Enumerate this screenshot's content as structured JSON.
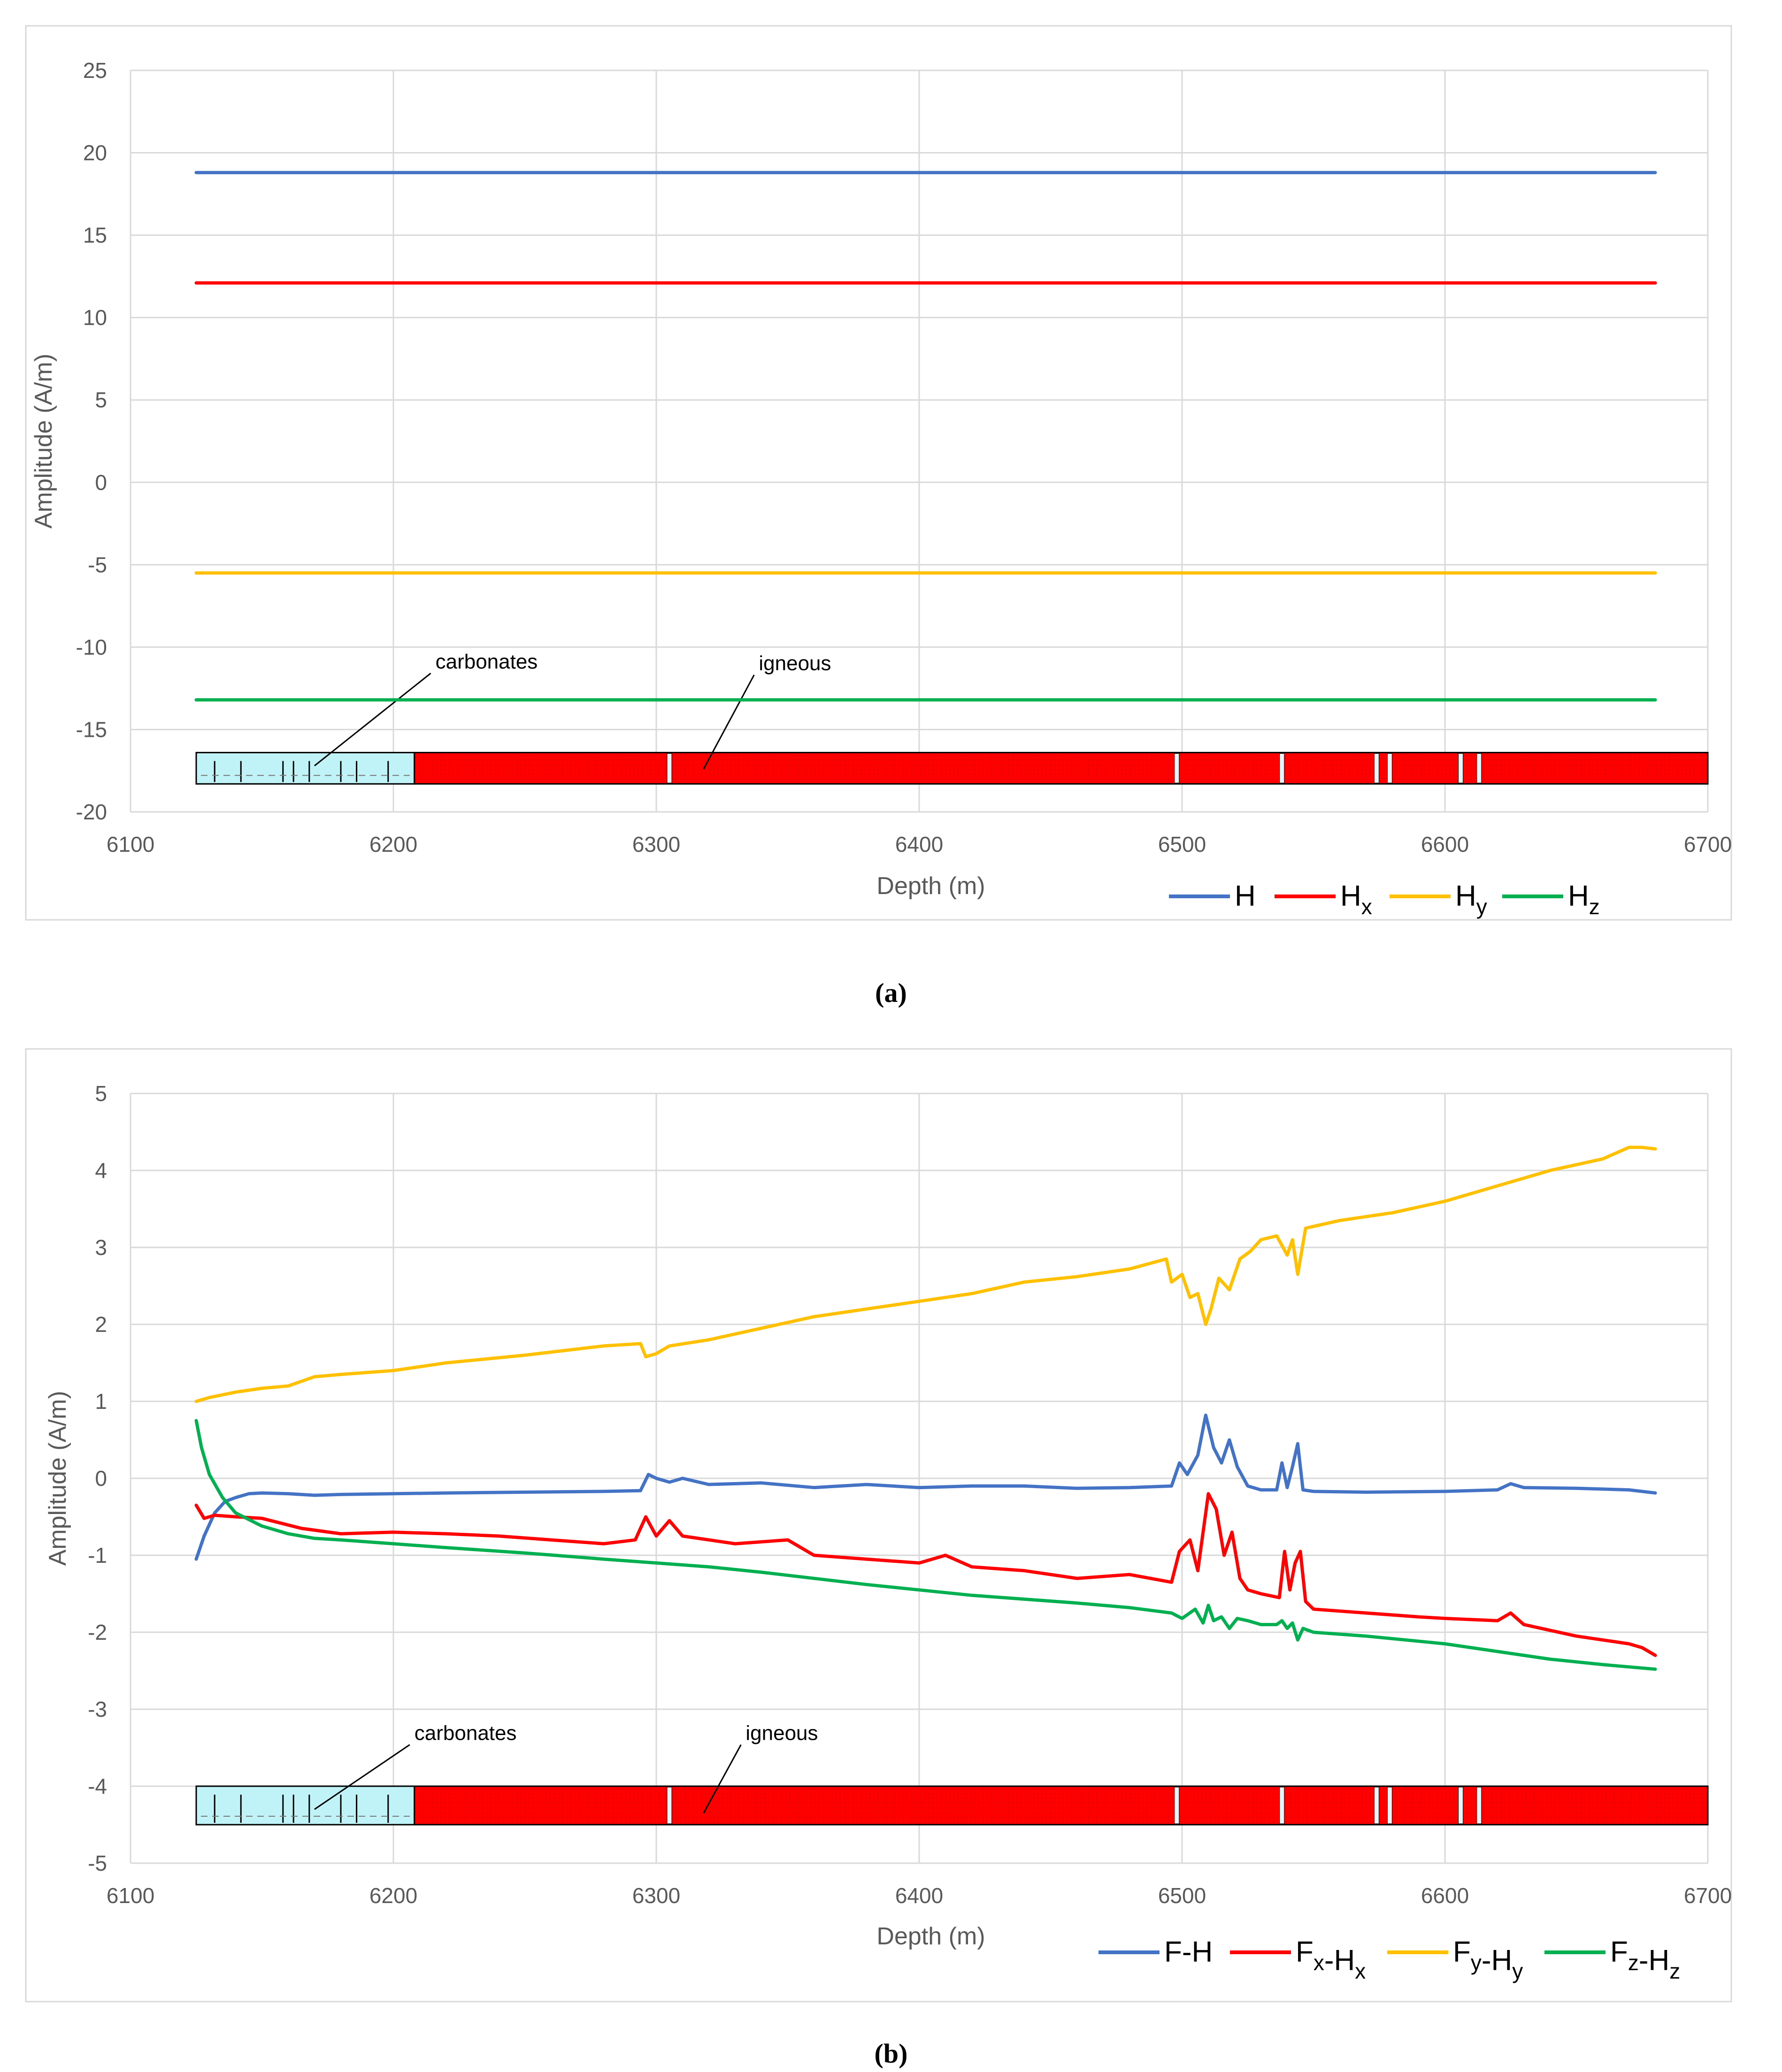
{
  "chart_data": [
    {
      "type": "line",
      "caption": "(a)",
      "xlabel": "Depth (m)",
      "ylabel": "Amplitude (A/m)",
      "xlim": [
        6100,
        6700
      ],
      "ylim": [
        -20,
        25
      ],
      "xticks": [
        "6100",
        "6200",
        "6300",
        "6400",
        "6500",
        "6600",
        "6700"
      ],
      "yticks": [
        "25",
        "20",
        "15",
        "10",
        "5",
        "0",
        "-5",
        "-10",
        "-15",
        "-20"
      ],
      "x_range": [
        6125,
        6680
      ],
      "series": [
        {
          "name": "H",
          "main": "H",
          "sub": "",
          "color": "#4472C4",
          "x": [
            6125,
            6680
          ],
          "values": [
            18.8,
            18.8
          ]
        },
        {
          "name": "Hx",
          "main": "H",
          "sub": "x",
          "color": "#FF0000",
          "x": [
            6125,
            6680
          ],
          "values": [
            12.1,
            12.1
          ]
        },
        {
          "name": "Hy",
          "main": "H",
          "sub": "y",
          "color": "#FFC000",
          "x": [
            6125,
            6680
          ],
          "values": [
            -5.5,
            -5.5
          ]
        },
        {
          "name": "Hz",
          "main": "H",
          "sub": "z",
          "color": "#00B050",
          "x": [
            6125,
            6680
          ],
          "values": [
            -13.2,
            -13.2
          ]
        }
      ],
      "lithology": {
        "y_range": [
          -18.3,
          -16.4
        ],
        "units": [
          {
            "name": "carbonates",
            "from": 6125,
            "to": 6208,
            "color": "#BFF3F7"
          },
          {
            "name": "igneous",
            "from": 6208,
            "to": 6700,
            "color": "#FF0000"
          }
        ],
        "white_breaks": [
          6305,
          6498,
          6538,
          6574,
          6579,
          6606,
          6613
        ],
        "annotations": [
          {
            "label": "carbonates",
            "text_x": 6216,
            "text_y": -11.3,
            "arrow_to": [
              6170,
              -17.2
            ]
          },
          {
            "label": "igneous",
            "text_x": 6339,
            "text_y": -11.4,
            "arrow_to": [
              6318,
              -17.4
            ]
          }
        ]
      }
    },
    {
      "type": "line",
      "caption": "(b)",
      "xlabel": "Depth (m)",
      "ylabel": "Amplitude (A/m)",
      "xlim": [
        6100,
        6700
      ],
      "ylim": [
        -5,
        5
      ],
      "xticks": [
        "6100",
        "6200",
        "6300",
        "6400",
        "6500",
        "6600",
        "6700"
      ],
      "yticks": [
        "5",
        "4",
        "3",
        "2",
        "1",
        "0",
        "-1",
        "-2",
        "-3",
        "-4",
        "-5"
      ],
      "series": [
        {
          "name": "F-H",
          "parts": [
            {
              "t": "F-H"
            }
          ],
          "color": "#4472C4",
          "x": [
            6125,
            6128,
            6132,
            6136,
            6140,
            6145,
            6150,
            6160,
            6170,
            6180,
            6200,
            6220,
            6250,
            6280,
            6294,
            6297,
            6300,
            6305,
            6310,
            6320,
            6340,
            6360,
            6380,
            6400,
            6420,
            6440,
            6460,
            6480,
            6496,
            6499,
            6502,
            6506,
            6509,
            6512,
            6515,
            6518,
            6521,
            6525,
            6530,
            6536,
            6538,
            6540,
            6542,
            6544,
            6546,
            6550,
            6570,
            6600,
            6620,
            6625,
            6630,
            6650,
            6670,
            6680
          ],
          "values": [
            -1.05,
            -0.75,
            -0.45,
            -0.3,
            -0.25,
            -0.2,
            -0.19,
            -0.2,
            -0.22,
            -0.21,
            -0.2,
            -0.19,
            -0.18,
            -0.17,
            -0.16,
            0.05,
            0.0,
            -0.05,
            0.0,
            -0.08,
            -0.06,
            -0.12,
            -0.08,
            -0.12,
            -0.1,
            -0.1,
            -0.13,
            -0.12,
            -0.1,
            0.2,
            0.05,
            0.3,
            0.82,
            0.4,
            0.2,
            0.5,
            0.15,
            -0.1,
            -0.15,
            -0.15,
            0.2,
            -0.12,
            0.15,
            0.45,
            -0.15,
            -0.17,
            -0.18,
            -0.17,
            -0.15,
            -0.07,
            -0.12,
            -0.13,
            -0.15,
            -0.19
          ]
        },
        {
          "name": "Fx-Hx",
          "parts": [
            {
              "t": "F"
            },
            {
              "t": "x",
              "sub": true
            },
            {
              "t": "-H"
            },
            {
              "t": "x",
              "sub": true
            }
          ],
          "color": "#FF0000",
          "x": [
            6125,
            6128,
            6132,
            6140,
            6150,
            6165,
            6180,
            6200,
            6220,
            6240,
            6260,
            6280,
            6292,
            6296,
            6300,
            6305,
            6310,
            6330,
            6350,
            6360,
            6380,
            6400,
            6410,
            6420,
            6440,
            6460,
            6480,
            6496,
            6499,
            6503,
            6506,
            6510,
            6513,
            6516,
            6519,
            6522,
            6525,
            6530,
            6537,
            6539,
            6541,
            6543,
            6545,
            6547,
            6550,
            6570,
            6590,
            6600,
            6620,
            6625,
            6630,
            6650,
            6670,
            6675,
            6680
          ],
          "values": [
            -0.35,
            -0.52,
            -0.48,
            -0.5,
            -0.52,
            -0.65,
            -0.72,
            -0.7,
            -0.72,
            -0.75,
            -0.8,
            -0.85,
            -0.8,
            -0.5,
            -0.75,
            -0.55,
            -0.75,
            -0.85,
            -0.8,
            -1.0,
            -1.05,
            -1.1,
            -1.0,
            -1.15,
            -1.2,
            -1.3,
            -1.25,
            -1.35,
            -0.95,
            -0.8,
            -1.2,
            -0.2,
            -0.4,
            -1.0,
            -0.7,
            -1.3,
            -1.45,
            -1.5,
            -1.55,
            -0.95,
            -1.45,
            -1.1,
            -0.95,
            -1.6,
            -1.7,
            -1.75,
            -1.8,
            -1.82,
            -1.85,
            -1.75,
            -1.9,
            -2.05,
            -2.15,
            -2.2,
            -2.3
          ]
        },
        {
          "name": "Fy-Hy",
          "parts": [
            {
              "t": "F"
            },
            {
              "t": "y",
              "sub": true
            },
            {
              "t": "-H"
            },
            {
              "t": "y",
              "sub": true
            }
          ],
          "color": "#FFC000",
          "x": [
            6125,
            6130,
            6140,
            6150,
            6160,
            6170,
            6180,
            6200,
            6220,
            6250,
            6280,
            6294,
            6296,
            6300,
            6305,
            6320,
            6340,
            6360,
            6380,
            6400,
            6420,
            6440,
            6460,
            6480,
            6494,
            6496,
            6500,
            6503,
            6506,
            6509,
            6511,
            6514,
            6518,
            6522,
            6526,
            6530,
            6536,
            6540,
            6542,
            6544,
            6547,
            6560,
            6580,
            6600,
            6620,
            6640,
            6660,
            6670,
            6675,
            6680
          ],
          "values": [
            1.0,
            1.05,
            1.12,
            1.17,
            1.2,
            1.32,
            1.35,
            1.4,
            1.5,
            1.6,
            1.72,
            1.75,
            1.58,
            1.62,
            1.72,
            1.8,
            1.95,
            2.1,
            2.2,
            2.3,
            2.4,
            2.55,
            2.62,
            2.72,
            2.85,
            2.55,
            2.65,
            2.35,
            2.4,
            2.0,
            2.2,
            2.6,
            2.45,
            2.85,
            2.95,
            3.1,
            3.15,
            2.9,
            3.1,
            2.65,
            3.25,
            3.35,
            3.45,
            3.6,
            3.8,
            4.0,
            4.15,
            4.3,
            4.3,
            4.28
          ]
        },
        {
          "name": "Fz-Hz",
          "parts": [
            {
              "t": "F"
            },
            {
              "t": "z",
              "sub": true
            },
            {
              "t": "-H"
            },
            {
              "t": "z",
              "sub": true
            }
          ],
          "color": "#00B050",
          "x": [
            6125,
            6127,
            6130,
            6135,
            6140,
            6150,
            6160,
            6170,
            6180,
            6200,
            6220,
            6250,
            6280,
            6300,
            6320,
            6340,
            6360,
            6380,
            6400,
            6420,
            6440,
            6460,
            6480,
            6496,
            6500,
            6505,
            6508,
            6510,
            6512,
            6515,
            6518,
            6521,
            6525,
            6530,
            6536,
            6538,
            6540,
            6542,
            6544,
            6546,
            6550,
            6570,
            6600,
            6620,
            6640,
            6660,
            6680
          ],
          "values": [
            0.75,
            0.4,
            0.05,
            -0.25,
            -0.45,
            -0.62,
            -0.72,
            -0.78,
            -0.8,
            -0.85,
            -0.9,
            -0.97,
            -1.05,
            -1.1,
            -1.15,
            -1.22,
            -1.3,
            -1.38,
            -1.45,
            -1.52,
            -1.57,
            -1.62,
            -1.68,
            -1.75,
            -1.82,
            -1.7,
            -1.88,
            -1.65,
            -1.85,
            -1.8,
            -1.95,
            -1.82,
            -1.85,
            -1.9,
            -1.9,
            -1.85,
            -1.95,
            -1.88,
            -2.1,
            -1.95,
            -2.0,
            -2.05,
            -2.15,
            -2.25,
            -2.35,
            -2.42,
            -2.48
          ]
        }
      ],
      "lithology": {
        "y_range": [
          -4.5,
          -4.0
        ],
        "units": [
          {
            "name": "carbonates",
            "from": 6125,
            "to": 6208,
            "color": "#BFF3F7"
          },
          {
            "name": "igneous",
            "from": 6208,
            "to": 6700,
            "color": "#FF0000"
          }
        ],
        "white_breaks": [
          6305,
          6498,
          6538,
          6574,
          6579,
          6606,
          6613
        ],
        "annotations": [
          {
            "label": "carbonates",
            "text_x": 6208,
            "text_y": -3.4,
            "arrow_to": [
              6170,
              -4.3
            ]
          },
          {
            "label": "igneous",
            "text_x": 6334,
            "text_y": -3.4,
            "arrow_to": [
              6318,
              -4.35
            ]
          }
        ]
      }
    }
  ]
}
